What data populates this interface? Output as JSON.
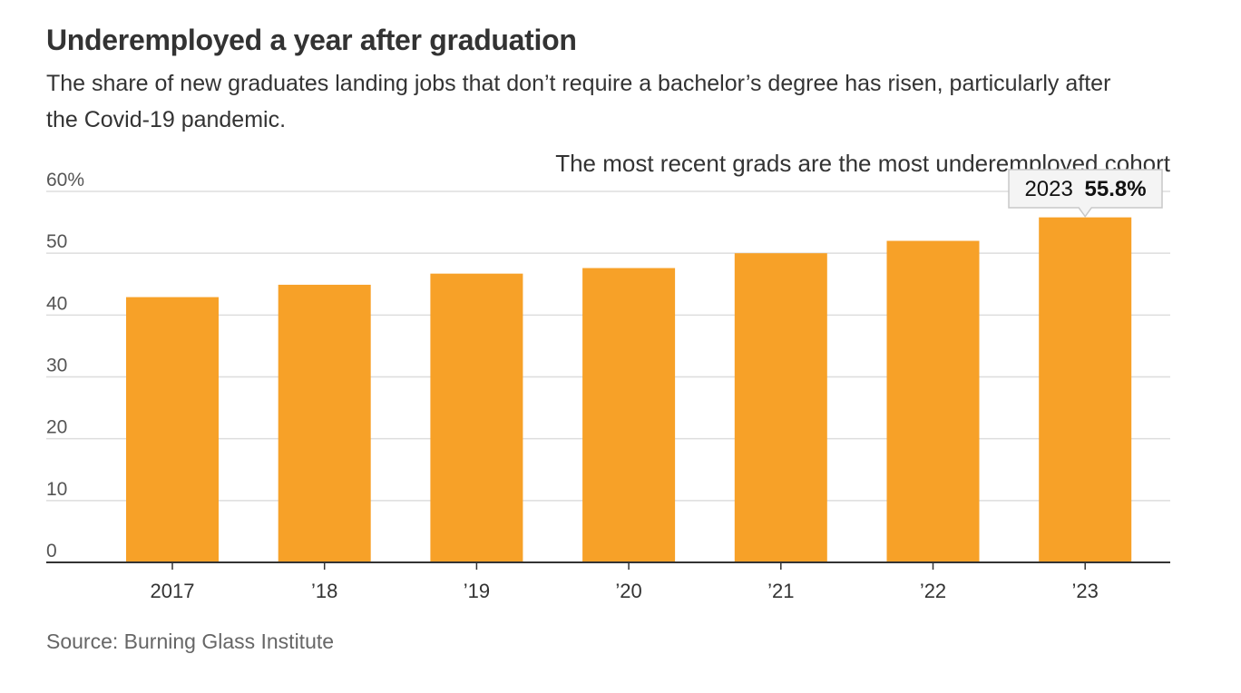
{
  "header": {
    "title": "Underemployed a year after graduation",
    "subtitle": "The share of new graduates landing jobs that don’t require a bachelor’s degree has risen, particularly after the Covid-19 pandemic."
  },
  "footer": {
    "source": "Source: Burning Glass Institute"
  },
  "chart_data": {
    "type": "bar",
    "annotation": "The most recent grads are the most underemployed cohort",
    "categories": [
      "2017",
      "’18",
      "’19",
      "’20",
      "’21",
      "’22",
      "’23"
    ],
    "values": [
      42.9,
      44.9,
      46.7,
      47.6,
      50.0,
      52.0,
      55.8
    ],
    "ylim": [
      0,
      60
    ],
    "yticks": [
      0,
      10,
      20,
      30,
      40,
      50,
      60
    ],
    "ytick_labels": [
      "0",
      "10",
      "20",
      "30",
      "40",
      "50",
      "60%"
    ],
    "highlight": {
      "year": "2023",
      "value_label": "55.8%"
    },
    "xlabel": "",
    "ylabel": "",
    "grid": true,
    "colors": {
      "bar": "#f7a128",
      "grid": "#dddddd",
      "axis": "#333333"
    }
  }
}
